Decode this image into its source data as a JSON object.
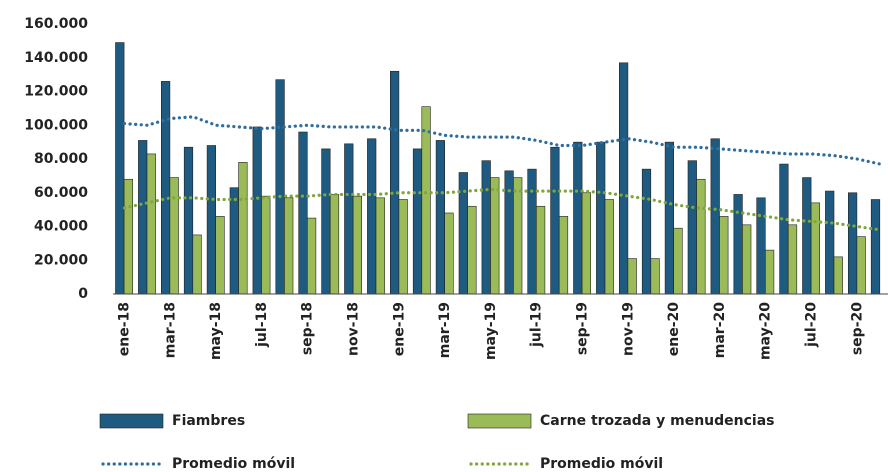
{
  "chart_data": {
    "type": "bar",
    "categories": [
      "ene-18",
      null,
      "mar-18",
      null,
      "may-18",
      null,
      "jul-18",
      null,
      "sep-18",
      null,
      "nov-18",
      null,
      "ene-19",
      null,
      "mar-19",
      null,
      "may-19",
      null,
      "jul-19",
      null,
      "sep-19",
      null,
      "nov-19",
      null,
      "ene-20",
      null,
      "mar-20",
      null,
      "may-20",
      null,
      "jul-20",
      null,
      "sep-20",
      null
    ],
    "series": [
      {
        "name": "Fiambres",
        "type": "bar",
        "color": "#1f5a80",
        "values": [
          149000,
          91000,
          126000,
          87000,
          88000,
          63000,
          99000,
          127000,
          96000,
          86000,
          89000,
          92000,
          132000,
          86000,
          91000,
          72000,
          79000,
          73000,
          74000,
          87000,
          90000,
          90000,
          137000,
          74000,
          90000,
          79000,
          92000,
          59000,
          57000,
          77000,
          69000,
          61000,
          60000,
          56000
        ]
      },
      {
        "name": "Carne trozada y menudencias",
        "type": "bar",
        "color": "#9bbb59",
        "values": [
          68000,
          83000,
          69000,
          35000,
          46000,
          78000,
          58000,
          57000,
          45000,
          59000,
          58000,
          57000,
          56000,
          111000,
          48000,
          52000,
          69000,
          69000,
          52000,
          46000,
          60000,
          56000,
          21000,
          21000,
          39000,
          68000,
          46000,
          41000,
          26000,
          41000,
          54000,
          22000,
          34000,
          null
        ]
      },
      {
        "name": "Promedio móvil",
        "type": "line",
        "color": "#2e6d9e",
        "values": [
          101000,
          100000,
          104000,
          105000,
          100000,
          99000,
          98000,
          99000,
          100000,
          99000,
          99000,
          99000,
          97000,
          97000,
          94000,
          93000,
          93000,
          93000,
          91000,
          88000,
          88000,
          90000,
          92000,
          90000,
          87000,
          87000,
          86000,
          85000,
          84000,
          83000,
          83000,
          82000,
          80000,
          77000
        ]
      },
      {
        "name": "Promedio móvil",
        "type": "line",
        "color": "#7fa640",
        "values": [
          51000,
          54000,
          57000,
          57000,
          56000,
          56000,
          57000,
          58000,
          58000,
          59000,
          59000,
          59000,
          60000,
          60000,
          60000,
          61000,
          62000,
          61000,
          61000,
          61000,
          61000,
          60000,
          58000,
          56000,
          53000,
          51000,
          50000,
          48000,
          46000,
          44000,
          43000,
          42000,
          40000,
          38000
        ]
      }
    ],
    "ylim": [
      0,
      160000
    ],
    "yticks": [
      0,
      {
        "value": 20000,
        "label": "20.000"
      },
      {
        "value": 40000,
        "label": "40.000"
      },
      {
        "value": 60000,
        "label": "60.000"
      },
      {
        "value": 80000,
        "label": "80.000"
      },
      {
        "value": 100000,
        "label": "100.000"
      },
      {
        "value": 120000,
        "label": "120.000"
      },
      {
        "value": 140000,
        "label": "140.000"
      },
      {
        "value": 160000,
        "label": "160.000"
      }
    ],
    "grid": false
  }
}
